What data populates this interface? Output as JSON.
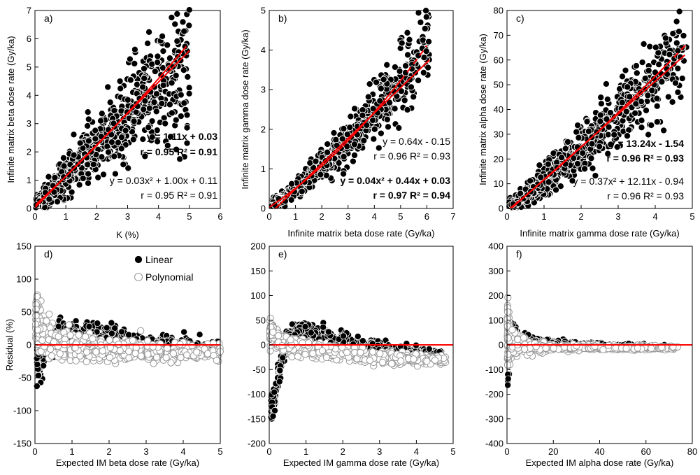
{
  "colors": {
    "fit": "#ff0000",
    "zero_line": "#ff0000",
    "filled_marker": "#000000",
    "open_marker_fill": "#ffffff",
    "open_marker_edge": "#999999"
  },
  "legend": {
    "linear": "Linear",
    "polynomial": "Polynomial"
  },
  "chart_data": [
    {
      "type": "scatter",
      "panel_label": "a)",
      "xlabel": "K (%)",
      "ylabel": "Infinite matrix beta dose rate (Gy/ka)",
      "xlim": [
        0,
        6
      ],
      "ylim": [
        0,
        7
      ],
      "xticks": [
        "0",
        "1",
        "2",
        "3",
        "4",
        "5",
        "6"
      ],
      "yticks": [
        "0",
        "1",
        "2",
        "3",
        "4",
        "5",
        "6",
        "7"
      ],
      "equations": [
        {
          "text": "y = 1.11x + 0.03",
          "bold": true
        },
        {
          "text": "r = 0.95 R² = 0.91",
          "bold": true
        },
        {
          "text": "y = 0.03x² + 1.00x + 0.11",
          "bold": false
        },
        {
          "text": "r = 0.95 R² = 0.91",
          "bold": false
        }
      ],
      "fits": [
        {
          "name": "linear",
          "coef": [
            0.03,
            1.11,
            0
          ],
          "x_range": [
            0,
            5.0
          ],
          "dash": false
        },
        {
          "name": "polynomial",
          "coef": [
            0.11,
            1.0,
            0.03
          ],
          "x_range": [
            0,
            4.9
          ],
          "dash": false
        }
      ],
      "points": {
        "seed": 11,
        "n": 900,
        "x_range": [
          0.02,
          5.0
        ],
        "x_shape": 1.7,
        "curve": [
          0.03,
          1.11,
          0.0
        ],
        "noise_sd": 0.22,
        "noise_abs": 0.08,
        "y_min": 0.02
      },
      "points_note": "approximate dense cloud; spread estimated from residuals"
    },
    {
      "type": "scatter",
      "panel_label": "b)",
      "xlabel": "Infinite matrix beta dose rate (Gy/ka)",
      "ylabel": "Infinite matrix gamma dose rate (Gy/ka)",
      "xlim": [
        0,
        7
      ],
      "ylim": [
        0,
        5
      ],
      "xticks": [
        "0",
        "1",
        "2",
        "3",
        "4",
        "5",
        "6",
        "7"
      ],
      "yticks": [
        "0",
        "1",
        "2",
        "3",
        "4",
        "5"
      ],
      "equations": [
        {
          "text": "y = 0.64x - 0.15",
          "bold": false
        },
        {
          "text": "r = 0.96 R² = 0.93",
          "bold": false
        },
        {
          "text": "y = 0.04x² + 0.44x + 0.03",
          "bold": true
        },
        {
          "text": "r = 0.97 R² = 0.94",
          "bold": true
        }
      ],
      "fits": [
        {
          "name": "linear",
          "coef": [
            -0.15,
            0.64,
            0
          ],
          "x_range": [
            0.23,
            6.1
          ],
          "dash": false
        },
        {
          "name": "polynomial",
          "coef": [
            0.03,
            0.44,
            0.04
          ],
          "x_range": [
            0.0,
            5.0
          ],
          "dash": false
        },
        {
          "name": "polynomial-ext",
          "coef": [
            0.03,
            0.44,
            0.04
          ],
          "x_range": [
            5.0,
            6.0
          ],
          "dash": true
        }
      ],
      "points": {
        "seed": 23,
        "n": 850,
        "x_range": [
          0.1,
          6.1
        ],
        "x_shape": 1.8,
        "curve": [
          0.03,
          0.44,
          0.04
        ],
        "noise_sd": 0.12,
        "noise_abs": 0.05,
        "y_min": 0.05
      },
      "points_note": "approximate dense cloud"
    },
    {
      "type": "scatter",
      "panel_label": "c)",
      "xlabel": "Infinite matrix gamma dose rate (Gy/ka)",
      "ylabel": "Infinite matrix alpha dose rate (Gy/ka)",
      "xlim": [
        0,
        5
      ],
      "ylim": [
        0,
        80
      ],
      "xticks": [
        "0",
        "1",
        "2",
        "3",
        "4",
        "5"
      ],
      "yticks": [
        "0",
        "10",
        "20",
        "30",
        "40",
        "50",
        "60",
        "70",
        "80"
      ],
      "equations": [
        {
          "text": "y = 13.24x - 1.54",
          "bold": true
        },
        {
          "text": "r = 0.96 R² = 0.93",
          "bold": true
        },
        {
          "text": "y = 0.37x² + 12.11x - 0.94",
          "bold": false
        },
        {
          "text": "r = 0.96 R² = 0.93",
          "bold": false
        }
      ],
      "fits": [
        {
          "name": "linear",
          "coef": [
            -1.54,
            13.24,
            0
          ],
          "x_range": [
            0.12,
            4.8
          ],
          "dash": false
        },
        {
          "name": "polynomial",
          "coef": [
            -0.94,
            12.11,
            0.37
          ],
          "x_range": [
            0.08,
            4.3
          ],
          "dash": false
        },
        {
          "name": "polynomial-ext",
          "coef": [
            -0.94,
            12.11,
            0.37
          ],
          "x_range": [
            4.3,
            4.85
          ],
          "dash": true
        }
      ],
      "points": {
        "seed": 37,
        "n": 850,
        "x_range": [
          0.05,
          4.85
        ],
        "x_shape": 1.7,
        "curve": [
          -1.54,
          13.24,
          0
        ],
        "noise_sd": 0.13,
        "noise_abs": 1.5,
        "y_min": 0.3
      },
      "points_note": "approximate dense cloud"
    },
    {
      "type": "scatter",
      "panel_label": "d)",
      "xlabel": "Expected IM beta dose rate (Gy/ka)",
      "ylabel": "Residual (%)",
      "xlim": [
        0,
        5
      ],
      "ylim": [
        -150,
        150
      ],
      "xticks": [
        "0",
        "1",
        "2",
        "3",
        "4",
        "5"
      ],
      "yticks": [
        "-150",
        "-100",
        "-50",
        "0",
        "50",
        "100",
        "150"
      ],
      "zero_line": 0,
      "legend": true,
      "residuals": {
        "linear": {
          "seed": 101,
          "n": 450,
          "x_range": [
            0.05,
            5.0
          ],
          "x_shape": 1.6,
          "bias": [
            [
              0.1,
              -20
            ],
            [
              0.6,
              15
            ],
            [
              1.5,
              18
            ],
            [
              3,
              5
            ],
            [
              5,
              -2
            ]
          ],
          "spread": [
            [
              0.1,
              30
            ],
            [
              0.5,
              18
            ],
            [
              2,
              12
            ],
            [
              5,
              10
            ]
          ]
        },
        "polynomial": {
          "seed": 202,
          "n": 650,
          "x_range": [
            0.02,
            5.0
          ],
          "x_shape": 1.6,
          "bias": [
            [
              0.05,
              40
            ],
            [
              0.3,
              10
            ],
            [
              1,
              -5
            ],
            [
              3,
              -10
            ],
            [
              5,
              -10
            ]
          ],
          "spread": [
            [
              0.05,
              35
            ],
            [
              0.5,
              20
            ],
            [
              2,
              14
            ],
            [
              5,
              10
            ]
          ]
        }
      },
      "points_note": "approximate residual clouds"
    },
    {
      "type": "scatter",
      "panel_label": "e)",
      "xlabel": "Expected IM gamma dose rate (Gy/ka)",
      "ylabel": "",
      "xlim": [
        0,
        5
      ],
      "ylim": [
        -200,
        200
      ],
      "xticks": [
        "0",
        "1",
        "2",
        "3",
        "4",
        "5"
      ],
      "yticks": [
        "-200",
        "-150",
        "-100",
        "-50",
        "0",
        "50",
        "100",
        "150",
        "200"
      ],
      "zero_line": 0,
      "residuals": {
        "linear": {
          "seed": 303,
          "n": 450,
          "x_range": [
            0.05,
            4.7
          ],
          "x_shape": 1.7,
          "bias": [
            [
              0.1,
              -130
            ],
            [
              0.25,
              -55
            ],
            [
              0.45,
              5
            ],
            [
              0.8,
              30
            ],
            [
              1.5,
              20
            ],
            [
              3,
              -5
            ],
            [
              4.7,
              -20
            ]
          ],
          "spread": [
            [
              0.1,
              25
            ],
            [
              0.5,
              15
            ],
            [
              1.5,
              12
            ],
            [
              4.7,
              8
            ]
          ]
        },
        "polynomial": {
          "seed": 404,
          "n": 650,
          "x_range": [
            0.02,
            4.8
          ],
          "x_shape": 1.6,
          "bias": [
            [
              0.05,
              25
            ],
            [
              0.4,
              5
            ],
            [
              1.2,
              -10
            ],
            [
              3,
              -25
            ],
            [
              4.8,
              -32
            ]
          ],
          "spread": [
            [
              0.05,
              20
            ],
            [
              0.5,
              15
            ],
            [
              2,
              12
            ],
            [
              4.8,
              8
            ]
          ]
        }
      },
      "points_note": "approximate residual clouds"
    },
    {
      "type": "scatter",
      "panel_label": "f)",
      "xlabel": "Expected IM alpha dose rate (Gy/ka)",
      "ylabel": "",
      "xlim": [
        0,
        80
      ],
      "ylim": [
        -400,
        400
      ],
      "xticks": [
        "0",
        "20",
        "40",
        "60",
        "80"
      ],
      "yticks": [
        "-400",
        "-300",
        "-200",
        "-100",
        "0",
        "100",
        "200",
        "300",
        "400"
      ],
      "zero_line": 0,
      "residuals": {
        "linear": {
          "seed": 505,
          "n": 400,
          "x_range": [
            0.3,
            74
          ],
          "x_shape": 2.0,
          "bias": [
            [
              0.3,
              -40
            ],
            [
              2,
              40
            ],
            [
              5,
              20
            ],
            [
              15,
              10
            ],
            [
              74,
              -10
            ]
          ],
          "spread": [
            [
              0.3,
              110
            ],
            [
              1.5,
              70
            ],
            [
              5,
              20
            ],
            [
              20,
              10
            ],
            [
              74,
              6
            ]
          ]
        },
        "polynomial": {
          "seed": 606,
          "n": 650,
          "x_range": [
            0.2,
            74
          ],
          "x_shape": 2.0,
          "bias": [
            [
              0.3,
              30
            ],
            [
              3,
              10
            ],
            [
              10,
              -10
            ],
            [
              74,
              -12
            ]
          ],
          "spread": [
            [
              0.3,
              110
            ],
            [
              1.5,
              55
            ],
            [
              5,
              25
            ],
            [
              20,
              10
            ],
            [
              74,
              6
            ]
          ]
        }
      },
      "points_note": "approximate residual clouds"
    }
  ]
}
